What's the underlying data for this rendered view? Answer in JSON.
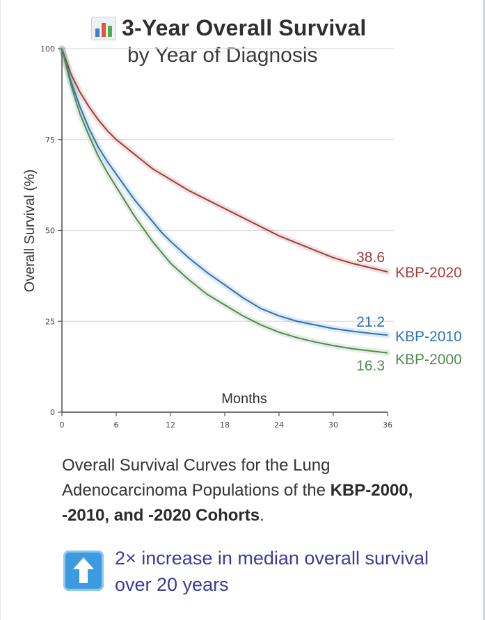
{
  "title": {
    "icon": "bar-chart-icon",
    "line1": "3-Year Overall Survival",
    "line2": "by Year of Diagnosis"
  },
  "chart_data": {
    "type": "line",
    "title": "3-Year Overall Survival by Year of Diagnosis",
    "xlabel": "Months",
    "ylabel": "Overall Survival (%)",
    "xlim": [
      0,
      36
    ],
    "ylim": [
      0,
      100
    ],
    "x_ticks": [
      0,
      6,
      12,
      18,
      24,
      30,
      36
    ],
    "y_ticks": [
      0,
      25,
      50,
      75,
      100
    ],
    "grid": "horizontal",
    "legend_placement": "right (inline labels at curve ends)",
    "series": [
      {
        "name": "KBP-2020",
        "color": "#a23b3b",
        "end_label": "38.6",
        "points": [
          [
            0,
            100
          ],
          [
            1,
            93
          ],
          [
            2,
            88
          ],
          [
            3,
            84
          ],
          [
            4,
            80.5
          ],
          [
            5,
            77.5
          ],
          [
            6,
            75
          ],
          [
            7,
            73
          ],
          [
            8,
            71
          ],
          [
            9,
            69
          ],
          [
            10,
            67
          ],
          [
            11,
            65.5
          ],
          [
            12,
            64
          ],
          [
            14,
            61
          ],
          [
            16,
            58.5
          ],
          [
            18,
            56
          ],
          [
            20,
            53.5
          ],
          [
            22,
            51
          ],
          [
            24,
            48.5
          ],
          [
            26,
            46.5
          ],
          [
            28,
            44.5
          ],
          [
            30,
            42.5
          ],
          [
            32,
            41
          ],
          [
            34,
            39.8
          ],
          [
            36,
            38.6
          ]
        ]
      },
      {
        "name": "KBP-2010",
        "color": "#2a73b5",
        "end_label": "21.2",
        "points": [
          [
            0,
            100
          ],
          [
            1,
            91
          ],
          [
            2,
            84
          ],
          [
            3,
            78
          ],
          [
            4,
            73
          ],
          [
            5,
            69
          ],
          [
            6,
            65.5
          ],
          [
            7,
            62
          ],
          [
            8,
            58.5
          ],
          [
            9,
            55.5
          ],
          [
            10,
            52.5
          ],
          [
            11,
            49.5
          ],
          [
            12,
            47
          ],
          [
            14,
            42.5
          ],
          [
            16,
            38.5
          ],
          [
            18,
            35
          ],
          [
            20,
            31.5
          ],
          [
            22,
            28.5
          ],
          [
            24,
            26.5
          ],
          [
            26,
            25
          ],
          [
            28,
            24
          ],
          [
            30,
            23
          ],
          [
            32,
            22.3
          ],
          [
            34,
            21.7
          ],
          [
            36,
            21.2
          ]
        ]
      },
      {
        "name": "KBP-2000",
        "color": "#4f8a4f",
        "end_label": "16.3",
        "points": [
          [
            0,
            100
          ],
          [
            1,
            90
          ],
          [
            2,
            82
          ],
          [
            3,
            76
          ],
          [
            4,
            70.5
          ],
          [
            5,
            66
          ],
          [
            6,
            62
          ],
          [
            7,
            58
          ],
          [
            8,
            54
          ],
          [
            9,
            50.5
          ],
          [
            10,
            47
          ],
          [
            11,
            44
          ],
          [
            12,
            41
          ],
          [
            14,
            36.5
          ],
          [
            16,
            32.5
          ],
          [
            18,
            29.5
          ],
          [
            20,
            26.5
          ],
          [
            22,
            24
          ],
          [
            24,
            22
          ],
          [
            26,
            20.5
          ],
          [
            28,
            19.3
          ],
          [
            30,
            18.3
          ],
          [
            32,
            17.5
          ],
          [
            34,
            16.9
          ],
          [
            36,
            16.3
          ]
        ]
      }
    ]
  },
  "caption": {
    "line_plain": "Overall Survival Curves for the Lung Adenocarcinoma Populations of the",
    "line_bold": "KBP-2000, -2010, and -2020 Cohorts",
    "line_end": "."
  },
  "callout": {
    "icon": "up-arrow-icon",
    "text": "2× increase in median overall survival over 20 years"
  }
}
